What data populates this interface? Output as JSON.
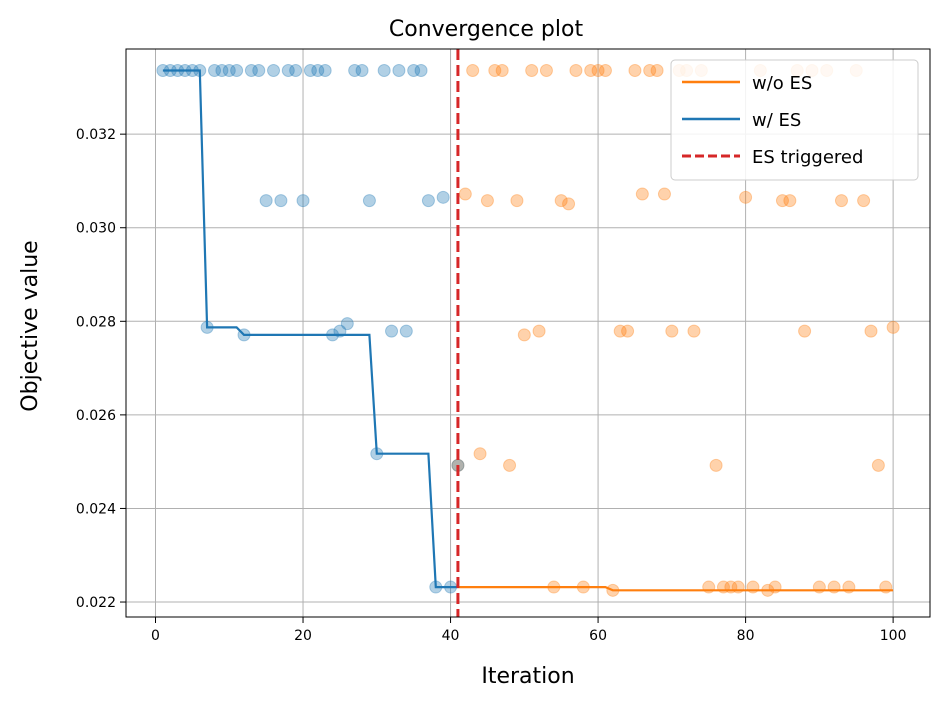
{
  "chart_data": {
    "type": "line",
    "title": "Convergence plot",
    "xlabel": "Iteration",
    "ylabel": "Objective value",
    "xlim": [
      -4,
      105
    ],
    "ylim": [
      0.02168,
      0.03382
    ],
    "xticks": [
      0,
      20,
      40,
      60,
      80,
      100
    ],
    "yticks": [
      0.022,
      0.024,
      0.026,
      0.028,
      0.03,
      0.032
    ],
    "ytick_labels": [
      "0.022",
      "0.024",
      "0.026",
      "0.028",
      "0.030",
      "0.032"
    ],
    "grid": true,
    "legend_position": "top-right",
    "colors": {
      "without_es": "#ff7f0e",
      "with_es": "#1f77b4",
      "es_triggered": "#d62728"
    },
    "series": [
      {
        "name": "w/o ES",
        "kind": "step-line",
        "x": [
          41,
          61,
          62,
          83,
          100
        ],
        "y": [
          0.02232,
          0.02232,
          0.02225,
          0.02225,
          0.02225
        ]
      },
      {
        "name": "w/ ES",
        "kind": "step-line",
        "x": [
          1,
          6,
          7,
          11,
          12,
          29,
          30,
          37,
          38,
          40,
          41
        ],
        "y": [
          0.03336,
          0.03336,
          0.02787,
          0.02787,
          0.02771,
          0.02771,
          0.02517,
          0.02517,
          0.02232,
          0.02232,
          0.02232
        ]
      },
      {
        "name": "ES triggered",
        "kind": "vline",
        "x": 41
      }
    ],
    "scatter_with_es": {
      "x": [
        1,
        2,
        3,
        4,
        5,
        6,
        7,
        8,
        9,
        10,
        11,
        12,
        13,
        14,
        15,
        16,
        17,
        18,
        19,
        20,
        21,
        22,
        23,
        24,
        25,
        26,
        27,
        28,
        29,
        30,
        31,
        32,
        33,
        34,
        35,
        36,
        37,
        38,
        39,
        40,
        41
      ],
      "y": [
        0.03336,
        0.03336,
        0.03336,
        0.03336,
        0.03336,
        0.03336,
        0.02787,
        0.03336,
        0.03336,
        0.03336,
        0.03336,
        0.02771,
        0.03336,
        0.03336,
        0.03058,
        0.03336,
        0.03058,
        0.03336,
        0.03336,
        0.03058,
        0.03336,
        0.03336,
        0.03336,
        0.02771,
        0.02779,
        0.02795,
        0.03336,
        0.03336,
        0.03058,
        0.02517,
        0.03336,
        0.02779,
        0.03336,
        0.02779,
        0.03336,
        0.03336,
        0.03058,
        0.02232,
        0.03065,
        0.02232,
        0.02492
      ]
    },
    "scatter_without_es": {
      "x": [
        41,
        42,
        43,
        44,
        45,
        46,
        47,
        48,
        49,
        50,
        51,
        52,
        53,
        54,
        55,
        56,
        57,
        58,
        59,
        60,
        61,
        62,
        63,
        64,
        65,
        66,
        67,
        68,
        69,
        70,
        71,
        72,
        73,
        74,
        75,
        76,
        77,
        78,
        79,
        80,
        81,
        82,
        83,
        84,
        85,
        86,
        87,
        88,
        89,
        90,
        91,
        92,
        93,
        94,
        95,
        96,
        97,
        98,
        99,
        100
      ],
      "y": [
        0.02492,
        0.03072,
        0.03336,
        0.02517,
        0.03058,
        0.03336,
        0.03336,
        0.02492,
        0.03058,
        0.02771,
        0.03336,
        0.02779,
        0.03336,
        0.02232,
        0.03058,
        0.03051,
        0.03336,
        0.02232,
        0.03336,
        0.03336,
        0.03336,
        0.02225,
        0.02779,
        0.02779,
        0.03336,
        0.03072,
        0.03336,
        0.03336,
        0.03072,
        0.02779,
        0.03336,
        0.03336,
        0.02779,
        0.03336,
        0.02232,
        0.02492,
        0.02232,
        0.02232,
        0.02232,
        0.03065,
        0.02232,
        0.03336,
        0.02225,
        0.02232,
        0.03058,
        0.03058,
        0.03336,
        0.02779,
        0.03336,
        0.02232,
        0.03336,
        0.02232,
        0.03058,
        0.02232,
        0.03336,
        0.03058,
        0.02779,
        0.02492,
        0.02232,
        0.02787
      ]
    }
  }
}
